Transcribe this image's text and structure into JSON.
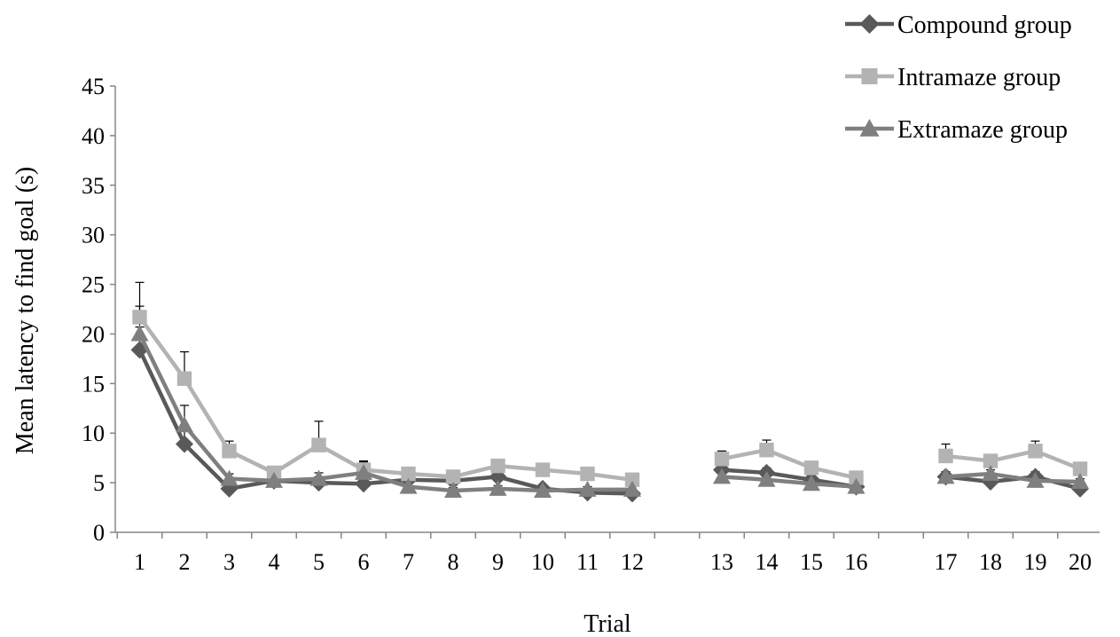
{
  "chart_data": {
    "type": "line",
    "title": "",
    "xlabel": "Trial",
    "ylabel": "Mean latency to find goal (s)",
    "ylim": [
      0,
      45
    ],
    "yticks": [
      0,
      5,
      10,
      15,
      20,
      25,
      30,
      35,
      40,
      45
    ],
    "grid": false,
    "legend_position": "top-right",
    "categories": [
      "1",
      "2",
      "3",
      "4",
      "5",
      "6",
      "7",
      "8",
      "9",
      "10",
      "11",
      "12",
      "",
      "13",
      "14",
      "15",
      "16",
      "",
      "17",
      "18",
      "19",
      "20"
    ],
    "series": [
      {
        "name": "Compound group",
        "color": "#595959",
        "marker": "diamond",
        "values": [
          18.4,
          8.9,
          4.4,
          5.2,
          5.0,
          4.9,
          5.3,
          5.2,
          5.6,
          4.4,
          4.0,
          3.9,
          null,
          6.3,
          6.0,
          5.3,
          4.6,
          null,
          5.6,
          5.1,
          5.6,
          4.4
        ],
        "errors": [
          2.3,
          1.6,
          0.5,
          0.4,
          0.6,
          0.4,
          0.4,
          0.4,
          0.5,
          0.3,
          0.3,
          0.3,
          null,
          0.4,
          0.5,
          0.4,
          0.3,
          null,
          0.5,
          0.4,
          0.5,
          0.3
        ]
      },
      {
        "name": "Intramaze group",
        "color": "#B3B3B3",
        "marker": "square",
        "values": [
          21.7,
          15.5,
          8.2,
          6.0,
          8.8,
          6.3,
          5.9,
          5.6,
          6.7,
          6.3,
          5.9,
          5.3,
          null,
          7.4,
          8.3,
          6.5,
          5.5,
          null,
          7.7,
          7.2,
          8.2,
          6.4
        ],
        "errors": [
          3.5,
          2.7,
          1.0,
          0.4,
          2.4,
          0.9,
          0.4,
          0.4,
          0.4,
          0.4,
          0.4,
          0.4,
          null,
          0.8,
          1.0,
          0.5,
          0.4,
          null,
          1.2,
          0.5,
          1.0,
          0.4
        ]
      },
      {
        "name": "Extramaze group",
        "color": "#7F7F7F",
        "marker": "triangle",
        "values": [
          20.0,
          10.8,
          5.4,
          5.2,
          5.4,
          6.0,
          4.6,
          4.2,
          4.4,
          4.2,
          4.3,
          4.3,
          null,
          5.6,
          5.3,
          4.9,
          4.6,
          null,
          5.6,
          5.9,
          5.2,
          5.1
        ],
        "errors": [
          2.8,
          2.0,
          0.5,
          0.4,
          0.6,
          1.1,
          0.3,
          0.3,
          0.3,
          0.3,
          0.3,
          0.3,
          null,
          0.4,
          0.4,
          0.3,
          0.3,
          null,
          0.5,
          0.4,
          0.4,
          0.3
        ]
      }
    ]
  }
}
